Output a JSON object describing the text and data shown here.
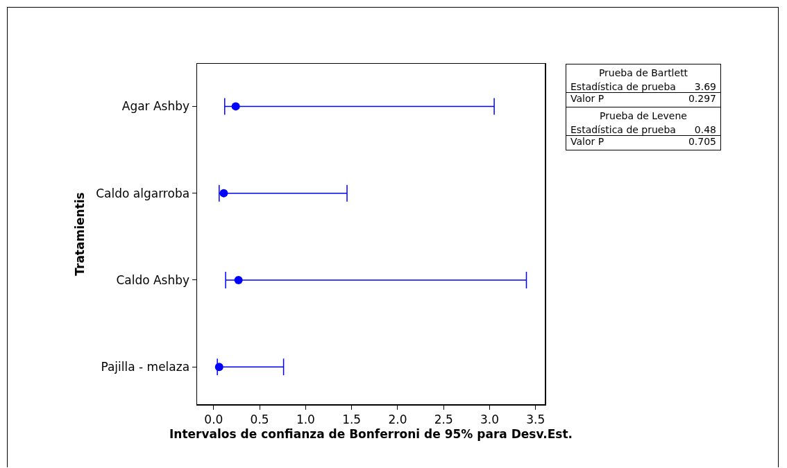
{
  "chart_data": {
    "type": "scatter",
    "orientation": "horizontal",
    "xlabel": "Intervalos de confianza de Bonferroni de 95% para Desv.Est.",
    "ylabel": "Tratamientis",
    "categories": [
      "Agar Ashby",
      "Caldo algarroba",
      "Caldo Ashby",
      "Pajilla - melaza"
    ],
    "values": [
      0.24,
      0.11,
      0.27,
      0.06
    ],
    "errors": [
      [
        0.12,
        3.05
      ],
      [
        0.06,
        1.45
      ],
      [
        0.13,
        3.4
      ],
      [
        0.04,
        0.76
      ]
    ],
    "color": "#0000ff",
    "marker": "circle",
    "xlim": [
      -0.18,
      3.6
    ],
    "xticks": [
      {
        "value": 0,
        "label": "0.0"
      },
      0.5,
      {
        "value": 1,
        "label": "1.0"
      },
      1.5,
      {
        "value": 2,
        "label": "2.0"
      },
      2.5,
      {
        "value": 3,
        "label": "3.0"
      },
      3.5
    ],
    "annotations": [
      "Prueba de Bartlett",
      "Estadística de prueba",
      "3.69",
      "Valor P",
      "0.297",
      "Prueba de Levene",
      "Estadística de prueba",
      "0.48",
      "Valor P",
      "0.705"
    ]
  }
}
